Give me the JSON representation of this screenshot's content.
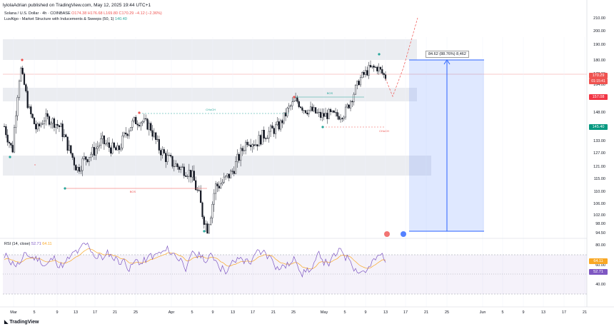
{
  "header": {
    "publisher": "lyiolaAdrian published on TradingView.com, May 12, 2025 19:44 UTC+1",
    "symbol_line": "Solana / U.S. Dollar · 4h · COINBASE",
    "ohlc": "O174.38  H176.68  L169.80  C170.29  −4.12 (−2.36%)",
    "indicator": "LuxAlgo - Market Structure with Inducements & Sweeps (50, 1)",
    "indicator_value": "140.40"
  },
  "rsi": {
    "title": "RSI (14, close)",
    "value1": "52.71",
    "value2": "64.11",
    "axis": [
      "80.00",
      "60.00",
      "40.00"
    ]
  },
  "colors": {
    "up": "#131722",
    "down": "#131722",
    "bos": "#ef5350",
    "choch": "#26a69a",
    "zone": "#e0e3eb",
    "position": "#2962ff",
    "rsi": "#7e57c2",
    "rsi_ma": "#f9a825"
  },
  "annotations": {
    "measure": "84.62 (88.76%) 8,462",
    "bos": "BOS",
    "choch": "CHoCH",
    "sweep": "x"
  },
  "price_tags": {
    "last": "170.29",
    "countdown": "01:15:41",
    "level_red": "157.08",
    "level_green": "145.40"
  },
  "brand": "TradingView",
  "chart_data": {
    "type": "line",
    "title": "Solana / U.S. Dollar · 4h · COINBASE",
    "xlabel": "",
    "ylabel": "",
    "yaxis_ticks": [
      "210.00",
      "200.00",
      "190.00",
      "180.00",
      "172.00",
      "164.00",
      "157.08",
      "148.00",
      "140.00",
      "133.00",
      "127.00",
      "121.00",
      "115.00",
      "110.00",
      "106.00",
      "102.00",
      "98.00",
      "94.50"
    ],
    "xaxis_ticks": [
      "Mar",
      "5",
      "9",
      "13",
      "17",
      "21",
      "25",
      "Apr",
      "5",
      "9",
      "13",
      "17",
      "21",
      "25",
      "May",
      "5",
      "9",
      "13",
      "17",
      "21",
      "25",
      "Jun",
      "5",
      "9",
      "13",
      "17",
      "21"
    ],
    "ylim": [
      94.5,
      210
    ],
    "series": [
      {
        "name": "SOLUSD",
        "x": [
          "Feb 27",
          "Feb 28",
          "Mar 1",
          "Mar 2",
          "Mar 3",
          "Mar 4",
          "Mar 5",
          "Mar 7",
          "Mar 9",
          "Mar 10",
          "Mar 11",
          "Mar 13",
          "Mar 15",
          "Mar 17",
          "Mar 19",
          "Mar 21",
          "Mar 23",
          "Mar 25",
          "Mar 26",
          "Mar 28",
          "Mar 30",
          "Apr 1",
          "Apr 3",
          "Apr 5",
          "Apr 6",
          "Apr 7",
          "Apr 8",
          "Apr 9",
          "Apr 10",
          "Apr 12",
          "Apr 14",
          "Apr 16",
          "Apr 18",
          "Apr 20",
          "Apr 22",
          "Apr 24",
          "Apr 25",
          "Apr 27",
          "Apr 29",
          "May 1",
          "May 3",
          "May 5",
          "May 7",
          "May 8",
          "May 9",
          "May 10",
          "May 11",
          "May 12"
        ],
        "values": [
          140,
          128,
          176,
          150,
          138,
          145,
          143,
          139,
          129,
          120,
          125,
          128,
          133,
          130,
          128,
          137,
          143,
          143,
          140,
          130,
          125,
          122,
          120,
          118,
          108,
          96,
          112,
          114,
          118,
          126,
          134,
          132,
          136,
          138,
          141,
          150,
          155,
          150,
          149,
          146,
          147,
          146,
          148,
          158,
          170,
          175,
          176,
          170
        ]
      }
    ]
  }
}
